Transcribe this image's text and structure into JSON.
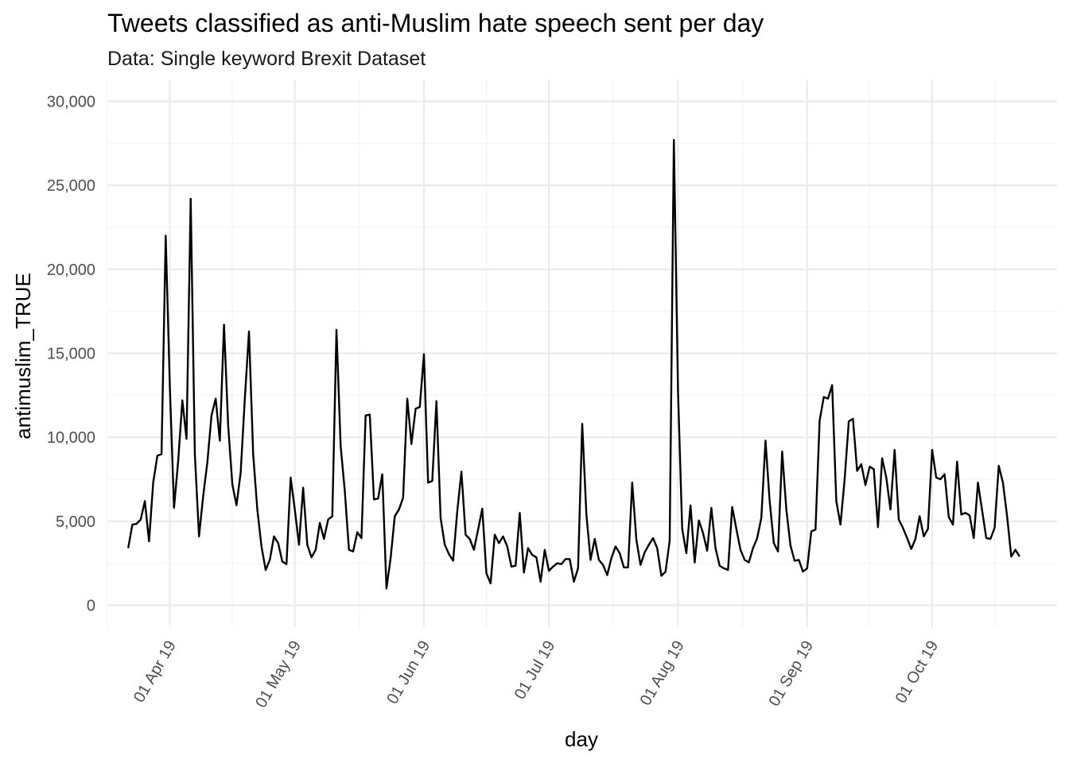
{
  "chart_data": {
    "type": "line",
    "title": "Tweets classified as anti-Muslim hate speech sent per day",
    "subtitle": "Data: Single keyword Brexit Dataset",
    "xlabel": "day",
    "ylabel": "antimuslim_TRUE",
    "xlim": [
      "2019-03-17",
      "2019-10-31"
    ],
    "ylim": [
      -1300,
      31300
    ],
    "y_ticks": [
      0,
      5000,
      10000,
      15000,
      20000,
      25000,
      30000
    ],
    "y_tick_labels": [
      "0",
      "5,000",
      "10,000",
      "15,000",
      "20,000",
      "25,000",
      "30,000"
    ],
    "x_ticks": [
      "2019-04-01",
      "2019-05-01",
      "2019-06-01",
      "2019-07-01",
      "2019-08-01",
      "2019-09-01",
      "2019-10-01"
    ],
    "x_tick_labels": [
      "01 Apr 19",
      "01 May 19",
      "01 Jun 19",
      "01 Jul 19",
      "01 Aug 19",
      "01 Sep 19",
      "01 Oct 19"
    ],
    "grid": true,
    "legend": "none",
    "line_color": "#000000",
    "series": [
      {
        "x_start": "2019-03-22",
        "x_step_days": 1,
        "values": [
          3400,
          4800,
          4850,
          5100,
          6200,
          3800,
          7300,
          8900,
          9000,
          22000,
          13000,
          5800,
          8600,
          12200,
          9900,
          24200,
          9000,
          4100,
          6500,
          8500,
          11300,
          12300,
          9800,
          16700,
          10700,
          7200,
          5950,
          7900,
          12300,
          16300,
          9000,
          5700,
          3500,
          2100,
          2700,
          4100,
          3700,
          2600,
          2450,
          7600,
          5700,
          3600,
          7000,
          3600,
          2850,
          3300,
          4900,
          3950,
          5100,
          5300,
          16400,
          9500,
          6800,
          3300,
          3200,
          4350,
          4000,
          11300,
          11350,
          6300,
          6350,
          7800,
          1000,
          2800,
          5300,
          5700,
          6400,
          12300,
          9600,
          11700,
          11800,
          14950,
          7300,
          7400,
          12150,
          5200,
          3600,
          3050,
          2650,
          5600,
          7950,
          4200,
          3950,
          3300,
          4500,
          5750,
          1900,
          1300,
          4200,
          3700,
          4100,
          3500,
          2300,
          2350,
          5500,
          1950,
          3400,
          3000,
          2850,
          1400,
          3300,
          2050,
          2300,
          2500,
          2450,
          2750,
          2750,
          1400,
          2200,
          10800,
          5400,
          2700,
          3950,
          2700,
          2400,
          1800,
          2800,
          3500,
          3100,
          2250,
          2250,
          7300,
          3900,
          2400,
          3150,
          3600,
          4000,
          3400,
          1750,
          2000,
          3850,
          27700,
          12700,
          4550,
          3100,
          5950,
          2550,
          5050,
          4300,
          3250,
          5800,
          3400,
          2350,
          2200,
          2100,
          5850,
          4550,
          3300,
          2700,
          2550,
          3400,
          4000,
          5200,
          9800,
          6200,
          3700,
          3200,
          9150,
          5700,
          3550,
          2650,
          2700,
          2000,
          2200,
          4400,
          4500,
          11000,
          12400,
          12300,
          13100,
          6200,
          4800,
          7500,
          10950,
          11100,
          8000,
          8400,
          7150,
          8250,
          8100,
          4650,
          8750,
          7600,
          5700,
          9250,
          5100,
          4600,
          4000,
          3350,
          3950,
          5300,
          4100,
          4550,
          9250,
          7600,
          7500,
          7800,
          5250,
          4800,
          8550,
          5400,
          5500,
          5350,
          4000,
          7300,
          5650,
          4000,
          3950,
          4600,
          8300,
          7300,
          5300,
          2900,
          3300,
          2900
        ]
      }
    ]
  }
}
